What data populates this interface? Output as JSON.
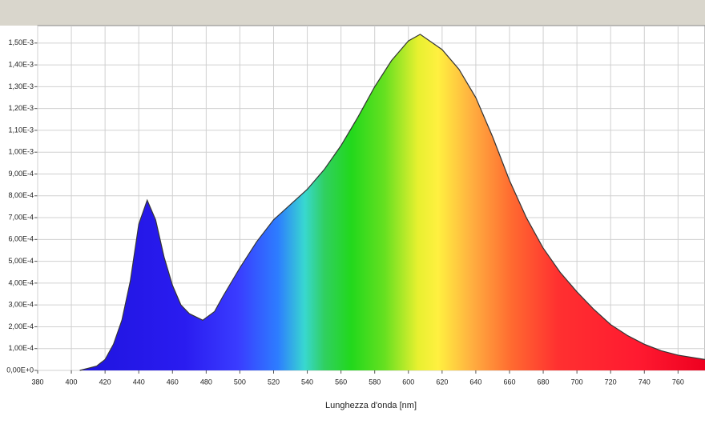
{
  "chart_data": {
    "type": "area",
    "x_label": "Lunghezza d'onda [nm]",
    "x": [
      405,
      410,
      415,
      420,
      425,
      430,
      435,
      440,
      445,
      450,
      455,
      460,
      465,
      470,
      478,
      485,
      490,
      500,
      510,
      520,
      530,
      540,
      550,
      560,
      570,
      580,
      590,
      600,
      607,
      620,
      630,
      640,
      650,
      660,
      670,
      680,
      690,
      700,
      710,
      720,
      730,
      740,
      750,
      760,
      776
    ],
    "values": [
      0,
      1e-05,
      2e-05,
      5e-05,
      0.00012,
      0.00023,
      0.00041,
      0.00067,
      0.00078,
      0.00069,
      0.00052,
      0.00039,
      0.0003,
      0.00026,
      0.00023,
      0.00027,
      0.00034,
      0.00047,
      0.00059,
      0.00069,
      0.00076,
      0.00083,
      0.00092,
      0.00103,
      0.00116,
      0.0013,
      0.00142,
      0.00151,
      0.00154,
      0.00147,
      0.00138,
      0.00125,
      0.00107,
      0.00087,
      0.0007,
      0.00056,
      0.00045,
      0.00036,
      0.00028,
      0.00021,
      0.00016,
      0.00012,
      9e-05,
      7e-05,
      5e-05
    ],
    "color": "#333333",
    "xlim": [
      380,
      776
    ],
    "ylim": [
      0,
      0.00158
    ],
    "xticks": [
      380,
      400,
      420,
      440,
      460,
      480,
      500,
      520,
      540,
      560,
      580,
      600,
      620,
      640,
      660,
      680,
      700,
      720,
      740,
      760
    ],
    "yticks": [
      {
        "value": 0,
        "label": "0,00E+0"
      },
      {
        "value": 0.0001,
        "label": "1,00E-4"
      },
      {
        "value": 0.0002,
        "label": "2,00E-4"
      },
      {
        "value": 0.0003,
        "label": "3,00E-4"
      },
      {
        "value": 0.0004,
        "label": "4,00E-4"
      },
      {
        "value": 0.0005,
        "label": "5,00E-4"
      },
      {
        "value": 0.0006,
        "label": "6,00E-4"
      },
      {
        "value": 0.0007,
        "label": "7,00E-4"
      },
      {
        "value": 0.0008,
        "label": "8,00E-4"
      },
      {
        "value": 0.0009,
        "label": "9,00E-4"
      },
      {
        "value": 0.001,
        "label": "1,00E-3"
      },
      {
        "value": 0.0011,
        "label": "1,10E-3"
      },
      {
        "value": 0.0012,
        "label": "1,20E-3"
      },
      {
        "value": 0.0013,
        "label": "1,30E-3"
      },
      {
        "value": 0.0014,
        "label": "1,40E-3"
      },
      {
        "value": 0.0015,
        "label": "1,50E-3"
      }
    ],
    "grid": true
  }
}
